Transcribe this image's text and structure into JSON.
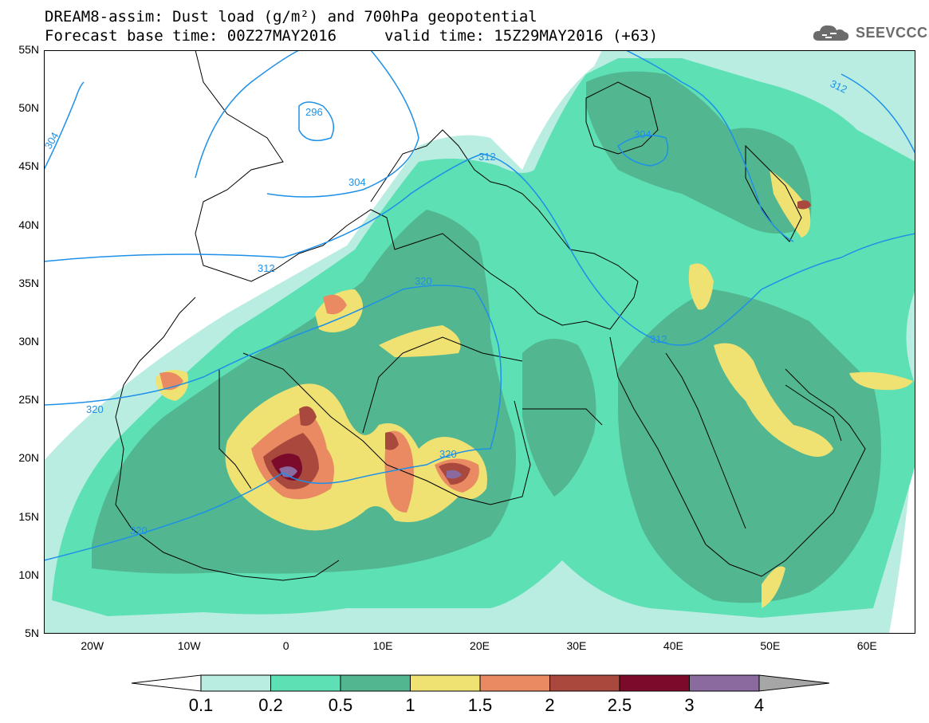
{
  "header": {
    "title_line1": "DREAM8-assim: Dust load (g/m²) and 700hPa geopotential",
    "title_line2_left": "Forecast base time: 00Z27MAY2016",
    "title_line2_right": "valid time: 15Z29MAY2016 (+63)"
  },
  "logo": {
    "text": "SEEVCCC",
    "icon": "cloud-icon"
  },
  "axes": {
    "lat_ticks": [
      "55N",
      "50N",
      "45N",
      "40N",
      "35N",
      "30N",
      "25N",
      "20N",
      "15N",
      "10N",
      "5N"
    ],
    "lon_ticks": [
      "20W",
      "10W",
      "0",
      "10E",
      "20E",
      "30E",
      "40E",
      "50E",
      "60E"
    ],
    "lon_range": [
      -25,
      65
    ],
    "lat_range": [
      5,
      55
    ]
  },
  "contour_labels": [
    "304",
    "296",
    "304",
    "312",
    "304",
    "312",
    "312",
    "320",
    "312",
    "320",
    "320",
    "320"
  ],
  "colorbar": {
    "labels": [
      "0.1",
      "0.2",
      "0.5",
      "1",
      "1.5",
      "2",
      "2.5",
      "3",
      "4"
    ],
    "colors": [
      "#ffffff",
      "#b9ede1",
      "#5de0b4",
      "#52b791",
      "#efe273",
      "#e98a63",
      "#a9483c",
      "#7c0b2b",
      "#8a6a9f",
      "#a6a6a6"
    ]
  }
}
